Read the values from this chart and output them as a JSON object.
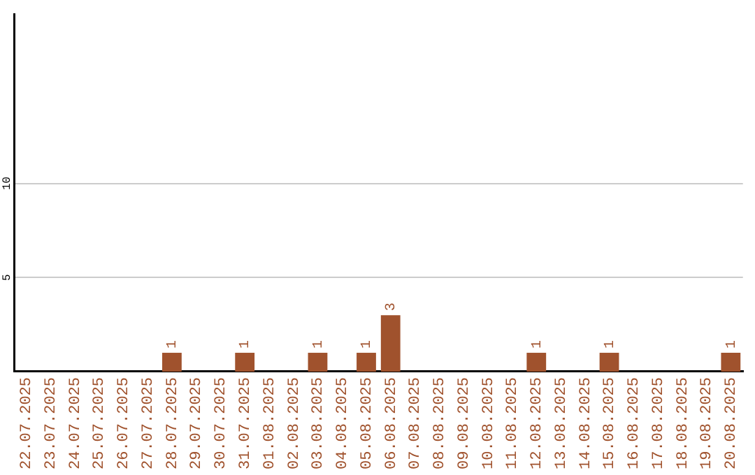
{
  "chart_data": {
    "type": "bar",
    "categories": [
      "22.07.2025",
      "23.07.2025",
      "24.07.2025",
      "25.07.2025",
      "26.07.2025",
      "27.07.2025",
      "28.07.2025",
      "29.07.2025",
      "30.07.2025",
      "31.07.2025",
      "01.08.2025",
      "02.08.2025",
      "03.08.2025",
      "04.08.2025",
      "05.08.2025",
      "06.08.2025",
      "07.08.2025",
      "08.08.2025",
      "09.08.2025",
      "10.08.2025",
      "11.08.2025",
      "12.08.2025",
      "13.08.2025",
      "14.08.2025",
      "15.08.2025",
      "16.08.2025",
      "17.08.2025",
      "18.08.2025",
      "19.08.2025",
      "20.08.2025"
    ],
    "values": [
      0,
      0,
      0,
      0,
      0,
      0,
      1,
      0,
      0,
      1,
      0,
      0,
      1,
      0,
      1,
      3,
      0,
      0,
      0,
      0,
      0,
      1,
      0,
      0,
      1,
      0,
      0,
      0,
      0,
      1
    ],
    "value_labels": [
      null,
      null,
      null,
      null,
      null,
      null,
      "1",
      null,
      null,
      "1",
      null,
      null,
      "1",
      null,
      "1",
      "3",
      null,
      null,
      null,
      null,
      null,
      "1",
      null,
      null,
      "1",
      null,
      null,
      null,
      null,
      "1"
    ],
    "color": "#a0522d",
    "ylim": [
      0,
      19
    ],
    "yticks": [
      5,
      10
    ],
    "grid": "y"
  }
}
